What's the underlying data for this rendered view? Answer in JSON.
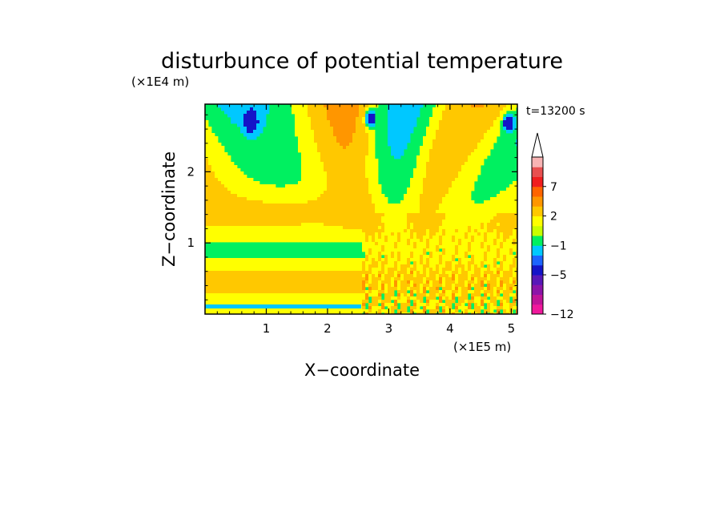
{
  "chart_data": {
    "type": "heatmap",
    "title": "disturbunce of potential temperature",
    "time_label": "t=13200 s",
    "xlabel": "X−coordinate",
    "ylabel": "Z−coordinate",
    "x_unit": "(×1E5 m)",
    "y_unit": "(×1E4 m)",
    "xlim": [
      0,
      5.1
    ],
    "ylim": [
      0,
      2.95
    ],
    "x_ticks": [
      1,
      2,
      3,
      4,
      5
    ],
    "x_tick_labels": [
      "1",
      "2",
      "3",
      "4",
      "5"
    ],
    "y_ticks": [
      1,
      2
    ],
    "y_tick_labels": [
      "1",
      "2"
    ],
    "colorbar": {
      "levels": [
        -12,
        -10,
        -8,
        -6,
        -5,
        -4,
        -3,
        -1,
        0,
        1,
        2,
        3,
        5,
        7,
        9,
        11,
        13
      ],
      "colors": [
        "#f0189c",
        "#c01498",
        "#8c14a8",
        "#5818b8",
        "#1414c8",
        "#1c64ff",
        "#00c8ff",
        "#00f060",
        "#c8ff00",
        "#ffff00",
        "#ffc800",
        "#ff9600",
        "#ff6400",
        "#f01e1e",
        "#e85050",
        "#f8b4b4"
      ],
      "labeled_levels": [
        7,
        2,
        -1,
        -5,
        -12
      ],
      "labels": [
        "7",
        "2",
        "−1",
        "−5",
        "−12"
      ],
      "extend_top": true
    },
    "field_description": "alternating warm/cold gravity-wave bands tilted outward from surface source near x=3.3e5 m; small-scale noise in lower right"
  }
}
